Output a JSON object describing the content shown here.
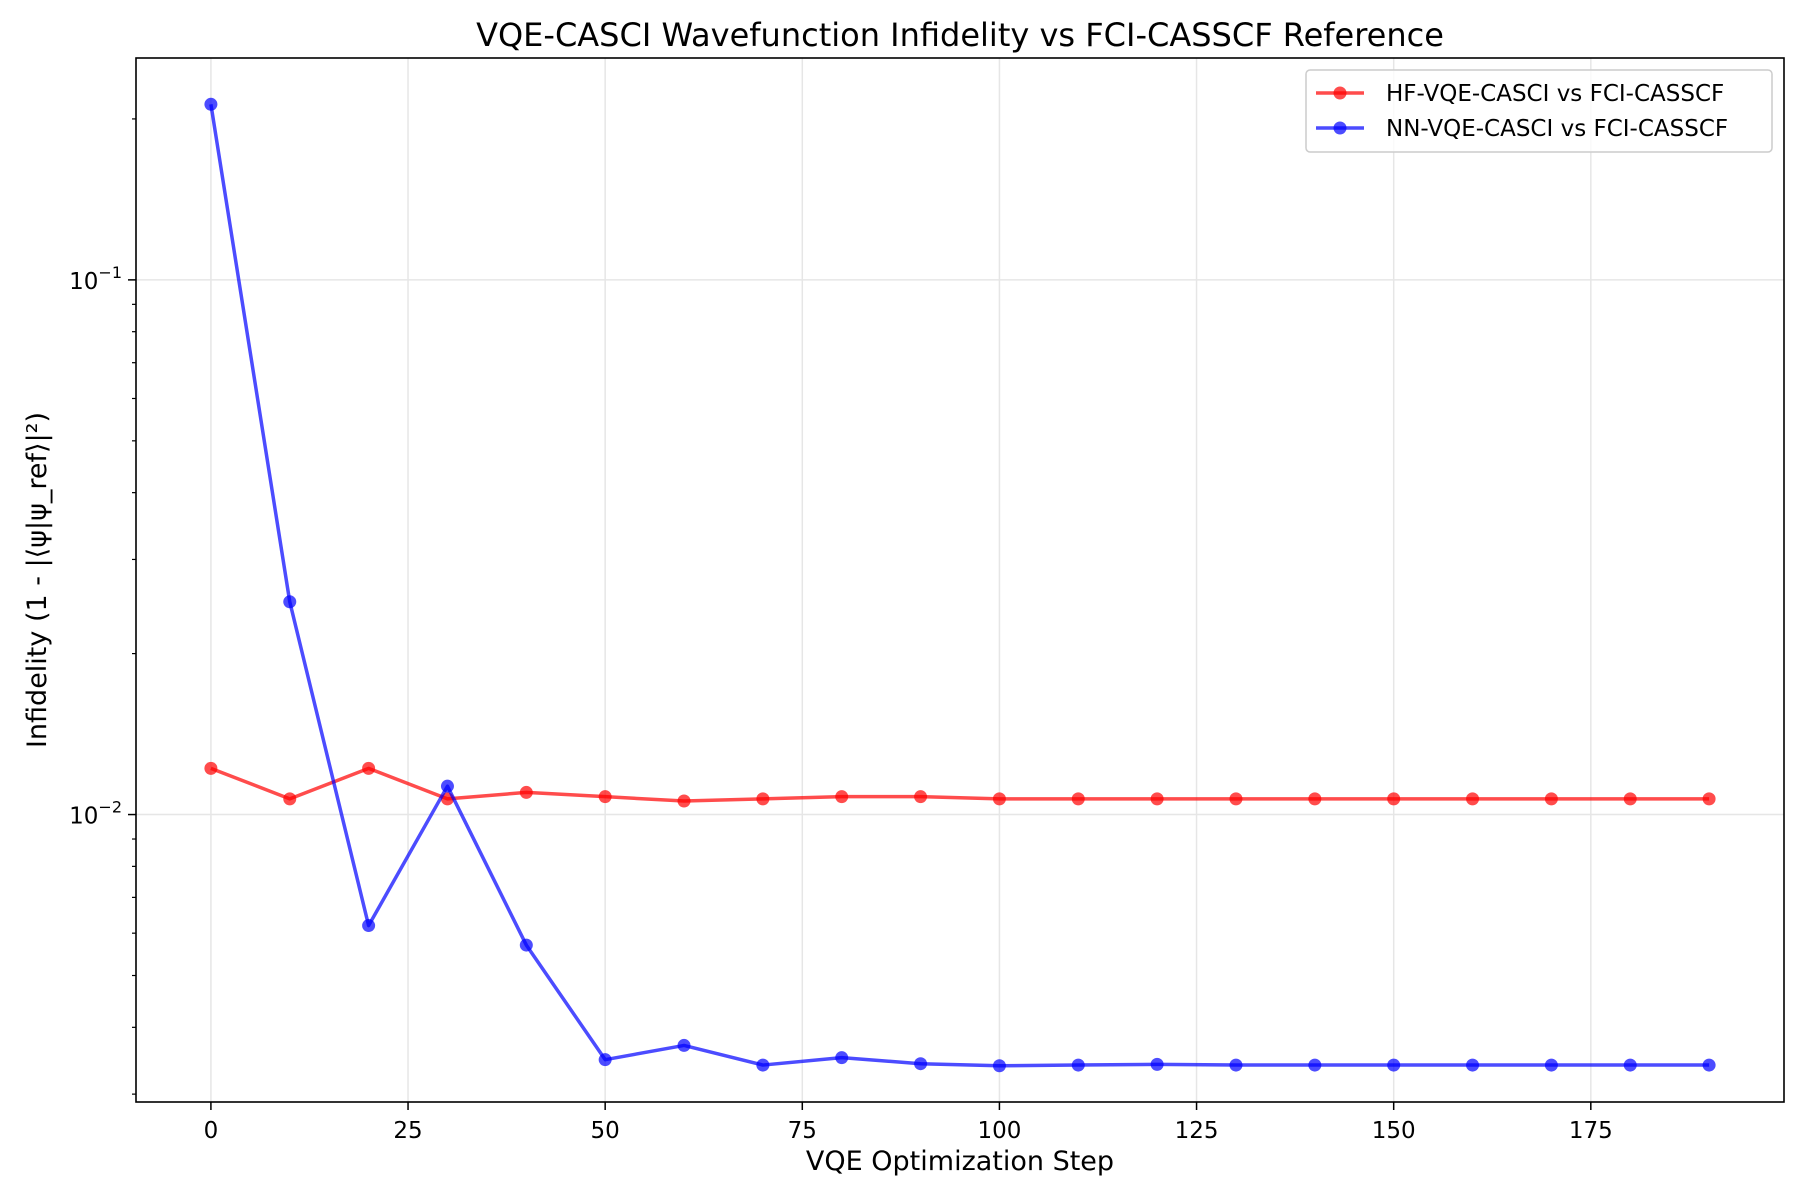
{
  "chart_data": {
    "type": "line",
    "title": "VQE-CASCI Wavefunction Infidelity vs FCI-CASSCF Reference",
    "xlabel": "VQE Optimization Step",
    "ylabel": "Infidelity (1 - |⟨ψ|ψ_ref⟩|²)",
    "y_scale": "log",
    "xlim": [
      -9.5,
      199.5
    ],
    "ylim": [
      0.0029,
      0.26
    ],
    "x_ticks": [
      0,
      25,
      50,
      75,
      100,
      125,
      150,
      175
    ],
    "y_ticks": [
      {
        "value": 0.1,
        "base": "10",
        "exp": "−1"
      },
      {
        "value": 0.01,
        "base": "10",
        "exp": "−2"
      }
    ],
    "grid": true,
    "legend_position": "top-right",
    "x": [
      0,
      10,
      20,
      30,
      40,
      50,
      60,
      70,
      80,
      90,
      100,
      110,
      120,
      130,
      140,
      150,
      160,
      170,
      180,
      190
    ],
    "series": [
      {
        "name": "HF-VQE-CASCI vs FCI-CASSCF",
        "color": "#ff0000",
        "values": [
          0.0122,
          0.0107,
          0.0122,
          0.0107,
          0.011,
          0.0108,
          0.0106,
          0.0107,
          0.0108,
          0.0108,
          0.0107,
          0.0107,
          0.0107,
          0.0107,
          0.0107,
          0.0107,
          0.0107,
          0.0107,
          0.0107,
          0.0107
        ]
      },
      {
        "name": "NN-VQE-CASCI vs FCI-CASSCF",
        "color": "#0000ff",
        "values": [
          0.213,
          0.025,
          0.0062,
          0.0113,
          0.0057,
          0.00348,
          0.0037,
          0.0034,
          0.00351,
          0.00342,
          0.00339,
          0.0034,
          0.00341,
          0.0034,
          0.0034,
          0.0034,
          0.0034,
          0.0034,
          0.0034,
          0.0034
        ]
      }
    ]
  }
}
